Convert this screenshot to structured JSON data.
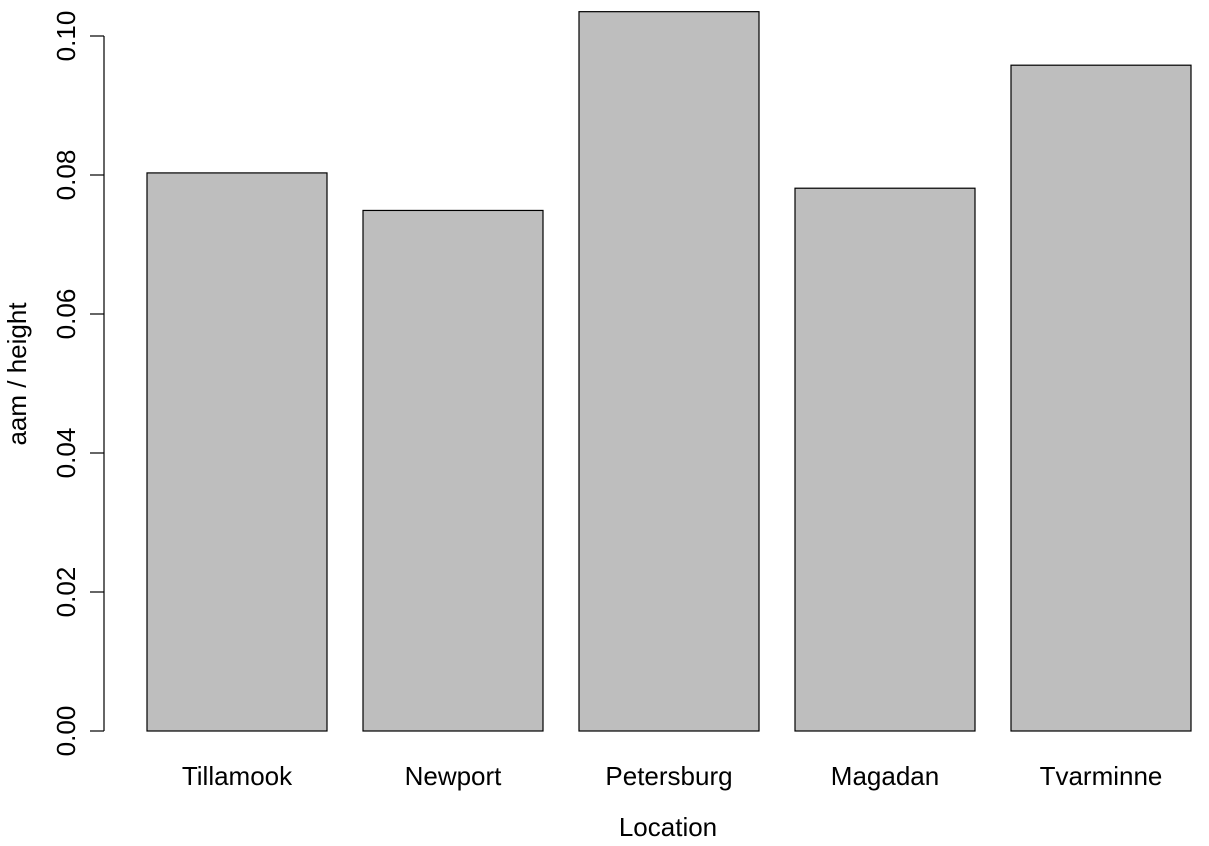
{
  "chart_data": {
    "type": "bar",
    "categories": [
      "Tillamook",
      "Newport",
      "Petersburg",
      "Magadan",
      "Tvarminne"
    ],
    "values": [
      0.0803,
      0.0749,
      0.1035,
      0.0781,
      0.0958
    ],
    "xlabel": "Location",
    "ylabel": "aam / height",
    "ylim": [
      0,
      0.1
    ],
    "yticks": [
      "0.00",
      "0.02",
      "0.04",
      "0.06",
      "0.08",
      "0.10"
    ],
    "grid": false,
    "bar_color": "#bebebe",
    "border_color": "#000000"
  }
}
